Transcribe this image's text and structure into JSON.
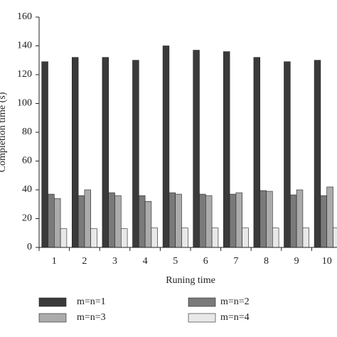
{
  "chart_data": {
    "type": "bar",
    "xlabel": "Runing time",
    "ylabel": "Completion time (s)",
    "categories": [
      "1",
      "2",
      "3",
      "4",
      "5",
      "6",
      "7",
      "8",
      "9",
      "10"
    ],
    "series": [
      {
        "name": "m=n=1",
        "color": "#3a3a3a",
        "values": [
          129,
          132,
          132,
          130,
          140,
          137,
          136,
          132,
          129,
          130
        ]
      },
      {
        "name": "m=n=2",
        "color": "#7a7a7a",
        "values": [
          37,
          36,
          38,
          36,
          38,
          37,
          37,
          39.5,
          36.5,
          36
        ]
      },
      {
        "name": "m=n=3",
        "color": "#ababab",
        "values": [
          34,
          40,
          36,
          32,
          37,
          36,
          38,
          39,
          40,
          42
        ]
      },
      {
        "name": "m=n=4",
        "color": "#e8e8e8",
        "values": [
          13,
          13,
          13,
          13.5,
          13.5,
          13.5,
          13.5,
          13.5,
          13.5,
          13.5
        ]
      }
    ],
    "ylim": [
      0,
      160
    ],
    "yticks": [
      0,
      20,
      40,
      60,
      80,
      100,
      120,
      140,
      160
    ],
    "legend": "bottom"
  }
}
